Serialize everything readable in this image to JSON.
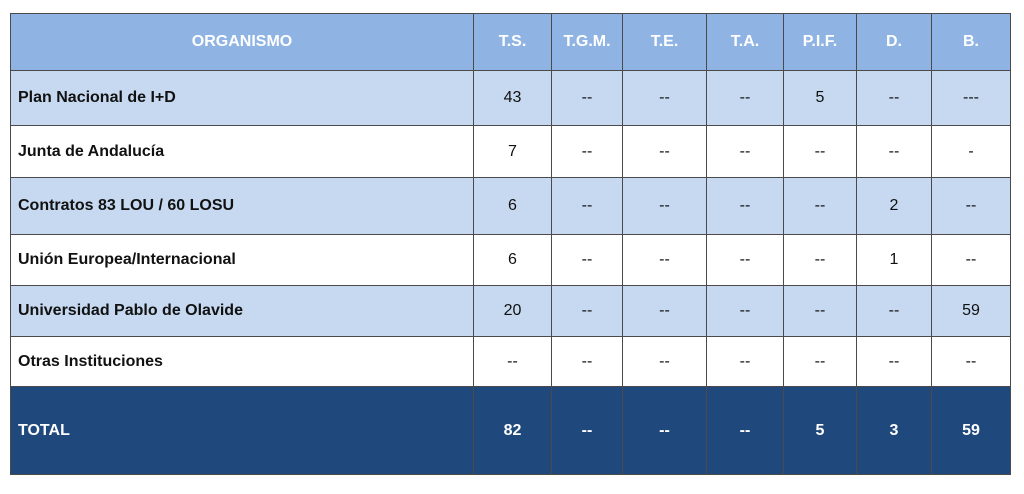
{
  "table": {
    "headers": [
      "ORGANISMO",
      "T.S.",
      "T.G.M.",
      "T.E.",
      "T.A.",
      "P.I.F.",
      "D.",
      "B."
    ],
    "rows": [
      [
        "Plan Nacional de I+D",
        "43",
        "--",
        "--",
        "--",
        "5",
        "--",
        "---"
      ],
      [
        "Junta de Andalucía",
        "7",
        "--",
        "--",
        "--",
        "--",
        "--",
        "-"
      ],
      [
        "Contratos 83 LOU / 60 LOSU",
        "6",
        "--",
        "--",
        "--",
        "--",
        "2",
        "--"
      ],
      [
        "Unión Europea/Internacional",
        "6",
        "--",
        "--",
        "--",
        "--",
        "1",
        "--"
      ],
      [
        "Universidad Pablo de Olavide",
        "20",
        "--",
        "--",
        "--",
        "--",
        "--",
        "59"
      ],
      [
        "Otras Instituciones",
        "--",
        "--",
        "--",
        "--",
        "--",
        "--",
        "--"
      ]
    ],
    "total": [
      "TOTAL",
      "82",
      "--",
      "--",
      "--",
      "5",
      "3",
      "59"
    ]
  },
  "colors": {
    "header_bg": "#8fb4e3",
    "row_shade": "#c6d9f1",
    "total_bg": "#1f497d"
  }
}
